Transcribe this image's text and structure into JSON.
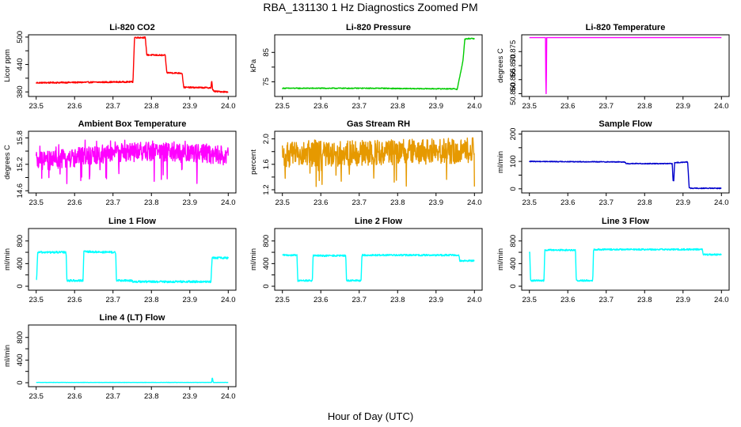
{
  "page": {
    "title": "RBA_131130  1 Hz Diagnostics Zoomed PM",
    "xlabel": "Hour of Day (UTC)"
  },
  "chart_data": [
    {
      "type": "line",
      "title": "Li-820 CO2",
      "ylabel": "Licor ppm",
      "color": "#ff0000",
      "xlim": [
        23.5,
        24.0
      ],
      "ylim": [
        370,
        505
      ],
      "xticks": [
        23.5,
        23.6,
        23.7,
        23.8,
        23.9,
        24.0
      ],
      "yticks": [
        380,
        440,
        500
      ],
      "ytick_labels": [
        "380",
        "440",
        "500"
      ],
      "ytick_minor": [
        410,
        470
      ],
      "noise": 1.5,
      "x": [
        23.5,
        23.752,
        23.756,
        23.784,
        23.788,
        23.836,
        23.84,
        23.88,
        23.884,
        23.955,
        23.957,
        23.959,
        23.963,
        23.965,
        24.0
      ],
      "y": [
        400,
        402,
        499,
        499,
        461,
        460,
        422,
        421,
        390,
        389,
        405,
        386,
        382,
        381,
        380
      ]
    },
    {
      "type": "line",
      "title": "Li-820 Pressure",
      "ylabel": "kPa",
      "color": "#00cc00",
      "xlim": [
        23.5,
        24.0
      ],
      "ylim": [
        70,
        91
      ],
      "xticks": [
        23.5,
        23.6,
        23.7,
        23.8,
        23.9,
        24.0
      ],
      "yticks": [
        75,
        85
      ],
      "ytick_labels": [
        "75",
        "85"
      ],
      "ytick_minor": [
        80
      ],
      "noise": 0.15,
      "x": [
        23.5,
        23.76,
        23.8,
        23.95,
        23.955,
        23.97,
        23.975,
        23.985,
        24.0
      ],
      "y": [
        72.8,
        72.8,
        72.7,
        72.6,
        72.4,
        82,
        89.5,
        89.7,
        89.7
      ]
    },
    {
      "type": "line",
      "title": "Li-820 Temperature",
      "ylabel": "degrees C",
      "color": "#ff00ff",
      "xlim": [
        23.5,
        24.0
      ],
      "ylim": [
        50.859,
        50.881
      ],
      "xticks": [
        23.5,
        23.6,
        23.7,
        23.8,
        23.9,
        24.0
      ],
      "yticks": [
        50.86,
        50.865,
        50.87,
        50.875
      ],
      "ytick_labels": [
        "50.860",
        "50.865",
        "50.870",
        "50.875"
      ],
      "noise": 0,
      "x": [
        23.5,
        23.542,
        23.543,
        23.544,
        23.545,
        24.0
      ],
      "y": [
        50.88,
        50.88,
        50.86,
        50.86,
        50.88,
        50.88
      ]
    },
    {
      "type": "line",
      "title": "Ambient Box Temperature",
      "ylabel": "degrees C",
      "color": "#ff00ff",
      "xlim": [
        23.5,
        24.0
      ],
      "ylim": [
        14.55,
        15.95
      ],
      "xticks": [
        23.5,
        23.6,
        23.7,
        23.8,
        23.9,
        24.0
      ],
      "yticks": [
        14.6,
        15.2,
        15.8
      ],
      "ytick_labels": [
        "14.6",
        "15.2",
        "15.8"
      ],
      "ytick_minor": [
        14.9,
        15.5
      ],
      "noise": 0.22,
      "spike_prob": 0.06,
      "spike_low": 14.75,
      "spike_high": 15.75,
      "x": [
        23.5,
        23.6,
        23.7,
        23.8,
        23.9,
        24.0
      ],
      "y": [
        15.25,
        15.35,
        15.45,
        15.5,
        15.45,
        15.4
      ]
    },
    {
      "type": "line",
      "title": "Gas Stream RH",
      "ylabel": "percent",
      "color": "#e69900",
      "xlim": [
        23.5,
        24.0
      ],
      "ylim": [
        1.15,
        2.12
      ],
      "xticks": [
        23.5,
        23.6,
        23.7,
        23.8,
        23.9,
        24.0
      ],
      "yticks": [
        1.2,
        1.6,
        2.0
      ],
      "ytick_labels": [
        "1.2",
        "1.6",
        "2.0"
      ],
      "ytick_minor": [
        1.4,
        1.8
      ],
      "noise": 0.2,
      "spike_prob": 0.05,
      "spike_low": 1.25,
      "spike_high": 2.0,
      "x": [
        23.5,
        23.75,
        24.0
      ],
      "y": [
        1.75,
        1.78,
        1.82
      ]
    },
    {
      "type": "line",
      "title": "Sample Flow",
      "ylabel": "ml/min",
      "color": "#0000cc",
      "xlim": [
        23.5,
        24.0
      ],
      "ylim": [
        -15,
        210
      ],
      "xticks": [
        23.5,
        23.6,
        23.7,
        23.8,
        23.9,
        24.0
      ],
      "yticks": [
        0,
        100,
        200
      ],
      "ytick_labels": [
        "0",
        "100",
        "200"
      ],
      "ytick_minor": [
        50,
        150
      ],
      "noise": 1.5,
      "x": [
        23.5,
        23.748,
        23.752,
        23.872,
        23.874,
        23.876,
        23.878,
        23.912,
        23.916,
        23.92,
        24.0
      ],
      "y": [
        100,
        98,
        92,
        92,
        30,
        30,
        95,
        98,
        5,
        2,
        2
      ]
    },
    {
      "type": "line",
      "title": "Line 1 Flow",
      "ylabel": "ml/min",
      "color": "#00ffff",
      "xlim": [
        23.5,
        24.0
      ],
      "ylim": [
        -70,
        1020
      ],
      "xticks": [
        23.5,
        23.6,
        23.7,
        23.8,
        23.9,
        24.0
      ],
      "yticks": [
        0,
        400,
        800
      ],
      "ytick_labels": [
        "0",
        "400",
        "800"
      ],
      "ytick_minor": [
        200,
        600
      ],
      "noise": 18,
      "x": [
        23.5,
        23.501,
        23.504,
        23.578,
        23.58,
        23.622,
        23.624,
        23.707,
        23.709,
        23.75,
        23.752,
        23.955,
        23.958,
        24.0
      ],
      "y": [
        100,
        100,
        600,
        600,
        100,
        100,
        610,
        600,
        100,
        100,
        80,
        80,
        500,
        500
      ]
    },
    {
      "type": "line",
      "title": "Line 2 Flow",
      "ylabel": "ml/min",
      "color": "#00ffff",
      "xlim": [
        23.5,
        24.0
      ],
      "ylim": [
        -70,
        1020
      ],
      "xticks": [
        23.5,
        23.6,
        23.7,
        23.8,
        23.9,
        24.0
      ],
      "yticks": [
        0,
        400,
        800
      ],
      "ytick_labels": [
        "0",
        "400",
        "800"
      ],
      "ytick_minor": [
        200,
        600
      ],
      "noise": 15,
      "x": [
        23.5,
        23.538,
        23.54,
        23.578,
        23.58,
        23.665,
        23.667,
        23.705,
        23.707,
        23.96,
        23.962,
        24.0
      ],
      "y": [
        550,
        550,
        100,
        100,
        540,
        540,
        100,
        100,
        550,
        550,
        450,
        450
      ]
    },
    {
      "type": "line",
      "title": "Line 3 Flow",
      "ylabel": "ml/min",
      "color": "#00ffff",
      "xlim": [
        23.5,
        24.0
      ],
      "ylim": [
        -70,
        1020
      ],
      "xticks": [
        23.5,
        23.6,
        23.7,
        23.8,
        23.9,
        24.0
      ],
      "yticks": [
        0,
        400,
        800
      ],
      "ytick_labels": [
        "0",
        "400",
        "800"
      ],
      "ytick_minor": [
        200,
        600
      ],
      "noise": 14,
      "x": [
        23.5,
        23.501,
        23.503,
        23.538,
        23.54,
        23.62,
        23.622,
        23.665,
        23.667,
        23.95,
        23.953,
        24.0
      ],
      "y": [
        600,
        600,
        100,
        100,
        640,
        640,
        100,
        100,
        650,
        650,
        560,
        560
      ]
    },
    {
      "type": "line",
      "title": "Line 4 (LT) Flow",
      "ylabel": "ml/min",
      "color": "#00ffff",
      "xlim": [
        23.5,
        24.0
      ],
      "ylim": [
        -70,
        1020
      ],
      "xticks": [
        23.5,
        23.6,
        23.7,
        23.8,
        23.9,
        24.0
      ],
      "yticks": [
        0,
        400,
        800
      ],
      "ytick_labels": [
        "0",
        "400",
        "800"
      ],
      "ytick_minor": [
        200,
        600
      ],
      "noise": 2,
      "x": [
        23.5,
        23.957,
        23.958,
        23.959,
        23.961,
        24.0
      ],
      "y": [
        5,
        5,
        80,
        80,
        5,
        5
      ]
    }
  ]
}
